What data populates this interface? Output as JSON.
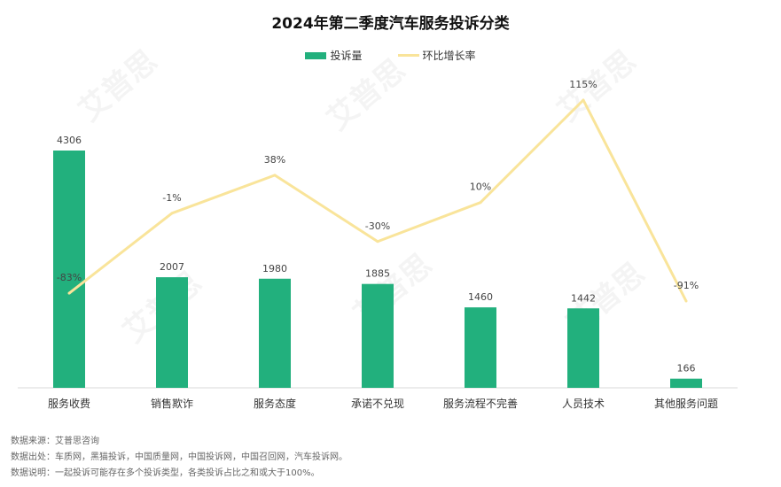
{
  "title": "2024年第二季度汽车服务投诉分类",
  "legend": {
    "bar_label": "投诉量",
    "line_label": "环比增长率"
  },
  "colors": {
    "bar": "#22b07d",
    "line": "#f9e49a",
    "axis": "#d9d9d9"
  },
  "chart_data": {
    "type": "bar",
    "title": "2024年第二季度汽车服务投诉分类",
    "categories": [
      "服务收费",
      "销售欺诈",
      "服务态度",
      "承诺不兑现",
      "服务流程不完善",
      "人员技术",
      "其他服务问题"
    ],
    "series": [
      {
        "name": "投诉量",
        "type": "bar",
        "values": [
          4306,
          2007,
          1980,
          1885,
          1460,
          1442,
          166
        ]
      },
      {
        "name": "环比增长率",
        "type": "line",
        "values": [
          -83,
          -1,
          38,
          -30,
          10,
          115,
          -91
        ],
        "unit": "%"
      }
    ],
    "bar_labels": [
      "4306",
      "2007",
      "1980",
      "1885",
      "1460",
      "1442",
      "166"
    ],
    "line_labels": [
      "-83%",
      "-1%",
      "38%",
      "-30%",
      "10%",
      "115%",
      "-91%"
    ],
    "ylim": [
      0,
      4306
    ],
    "secondary_ylim": [
      -91,
      115
    ],
    "grid": false,
    "legend_position": "top-center"
  },
  "footnotes": [
    "数据来源：艾普思咨询",
    "数据出处：车质网，黑猫投诉，中国质量网，中国投诉网，中国召回网，汽车投诉网。",
    "数据说明：一起投诉可能存在多个投诉类型，各类投诉占比之和或大于100%。"
  ],
  "watermark_text": "艾普思"
}
